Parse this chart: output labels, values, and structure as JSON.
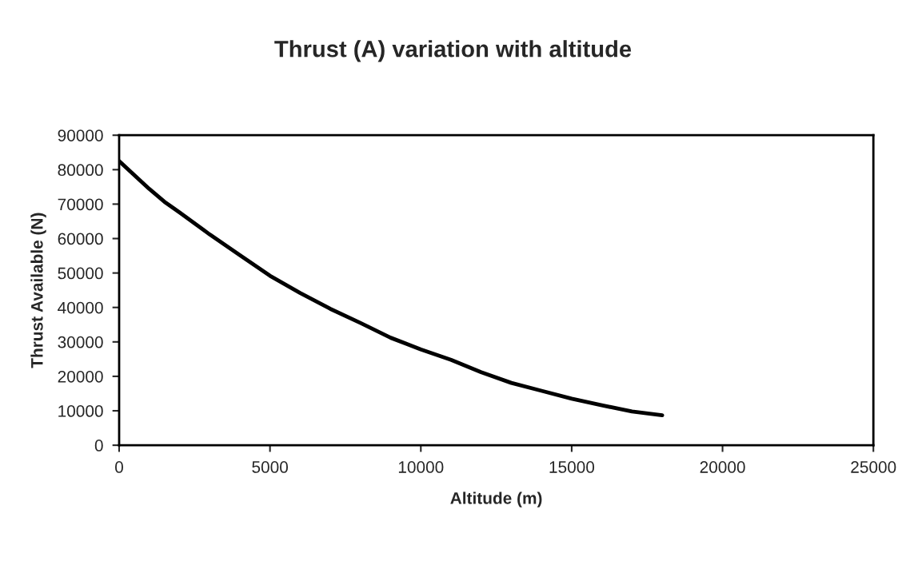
{
  "chart_data": {
    "type": "line",
    "title": "Thrust (A) variation with altitude",
    "xlabel": "Altitude (m)",
    "ylabel": "Thrust Available (N)",
    "x": [
      0,
      1000,
      1500,
      2000,
      3000,
      4000,
      5000,
      6000,
      7000,
      8000,
      9000,
      10000,
      11000,
      12000,
      13000,
      14000,
      15000,
      16000,
      17000,
      18000
    ],
    "series": [
      {
        "color": "#000000",
        "values": [
          82500,
          74400,
          70700,
          67600,
          61200,
          55200,
          49200,
          44200,
          39600,
          35500,
          31200,
          27800,
          24800,
          21200,
          18100,
          15800,
          13500,
          11600,
          9800,
          8700
        ]
      }
    ],
    "xlim": [
      0,
      25000
    ],
    "xticks": [
      0,
      5000,
      10000,
      15000,
      20000,
      25000
    ],
    "ylim": [
      0,
      90000
    ],
    "yticks": [
      0,
      10000,
      20000,
      30000,
      40000,
      50000,
      60000,
      70000,
      80000,
      90000
    ],
    "grid": false,
    "legend": false,
    "marker": "none",
    "line_style": "solid"
  }
}
